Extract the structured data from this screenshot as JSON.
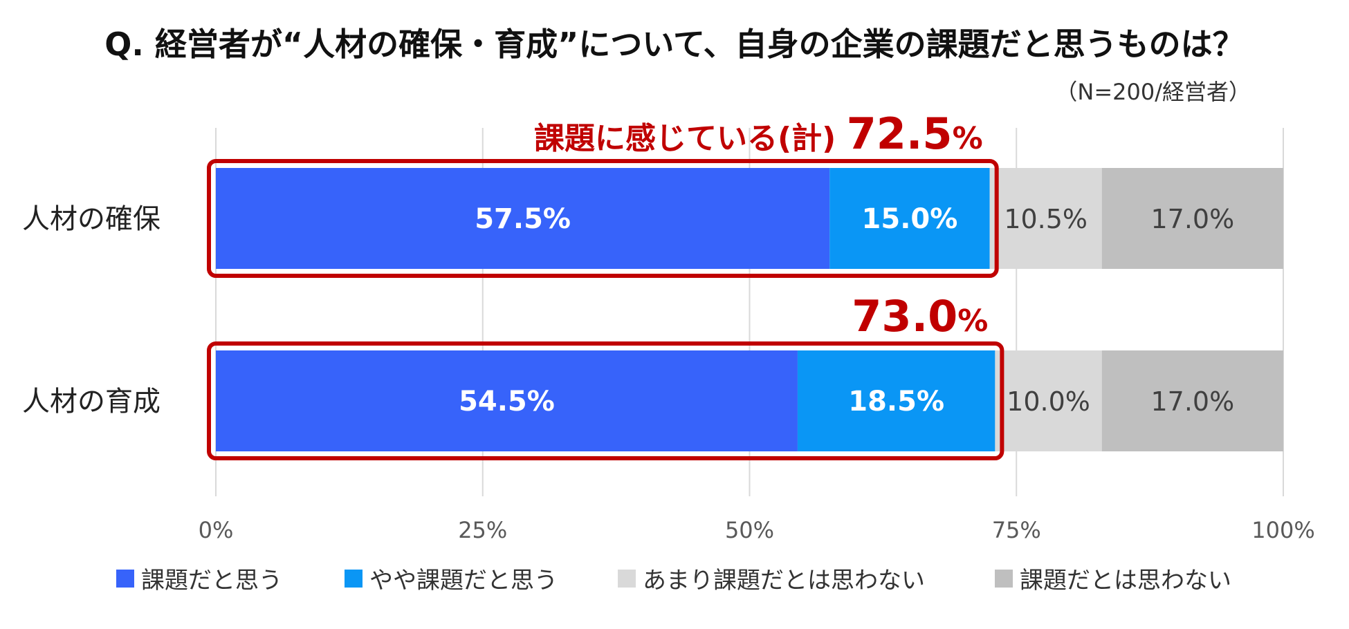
{
  "title": "Q. 経営者が“人材の確保・育成”について、自身の企業の課題だと思うものは？",
  "sample_note": "（N=200/経営者）",
  "chart_data": {
    "type": "bar",
    "orientation": "horizontal",
    "stacked": true,
    "categories": [
      "人材の確保",
      "人材の育成"
    ],
    "series": [
      {
        "name": "課題だと思う",
        "values": [
          57.5,
          54.5
        ],
        "color": "#3763FA"
      },
      {
        "name": "やや課題だと思う",
        "values": [
          15.0,
          18.5
        ],
        "color": "#0A96F5"
      },
      {
        "name": "あまり課題だとは思わない",
        "values": [
          10.5,
          10.0
        ],
        "color": "#D9D9D9"
      },
      {
        "name": "課題だとは思わない",
        "values": [
          17.0,
          17.0
        ],
        "color": "#BFBFBF"
      }
    ],
    "data_labels": [
      [
        "57.5%",
        "54.5%"
      ],
      [
        "15.0%",
        "18.5%"
      ],
      [
        "10.5%",
        "10.0%"
      ],
      [
        "17.0%",
        "17.0%"
      ]
    ],
    "x_ticks": [
      "0%",
      "25%",
      "50%",
      "75%",
      "100%"
    ],
    "xlim": [
      0,
      100
    ],
    "grid": true,
    "legend_position": "bottom",
    "annotations": [
      {
        "category": "人材の確保",
        "label": "課題に感じている(計)",
        "value": "72.5",
        "unit": "%",
        "total": 72.5
      },
      {
        "category": "人材の育成",
        "label": "",
        "value": "73.0",
        "unit": "%",
        "total": 73.0
      }
    ],
    "highlight_color": "#C00000"
  }
}
